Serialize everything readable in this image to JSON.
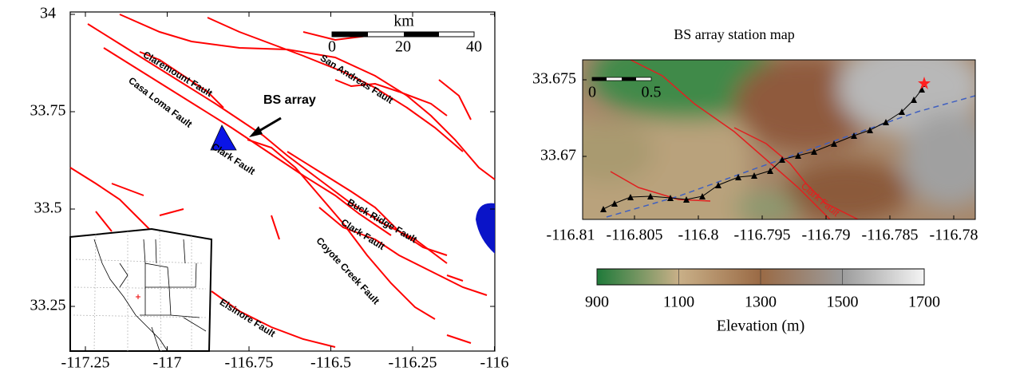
{
  "left_map": {
    "xticks": [
      -117.25,
      -117,
      -116.75,
      -116.5,
      -116.25,
      -116
    ],
    "yticks": [
      34,
      33.75,
      33.5,
      33.25
    ],
    "scale_bar": {
      "unit": "km",
      "ticks": [
        0,
        20,
        40
      ]
    },
    "annotation": "BS array",
    "fault_labels": [
      "Claremount Fault",
      "Casa Loma Fault",
      "San Andreas Fault",
      "Clark Fault",
      "Buck Ridge Fault",
      "Clark Fault",
      "Coyote Creek Fault",
      "Elsinore Fault"
    ]
  },
  "right_map": {
    "title": "BS array station map",
    "xticks": [
      -116.81,
      -116.805,
      -116.8,
      -116.795,
      -116.79,
      -116.785,
      -116.78
    ],
    "yticks": [
      33.675,
      33.67
    ],
    "scale_bar": {
      "ticks": [
        0,
        0.5
      ]
    },
    "fault_label": "Clark Fault"
  },
  "colorbar": {
    "label": "Elevation (m)",
    "ticks": [
      900,
      1100,
      1300,
      1500,
      1700
    ]
  }
}
